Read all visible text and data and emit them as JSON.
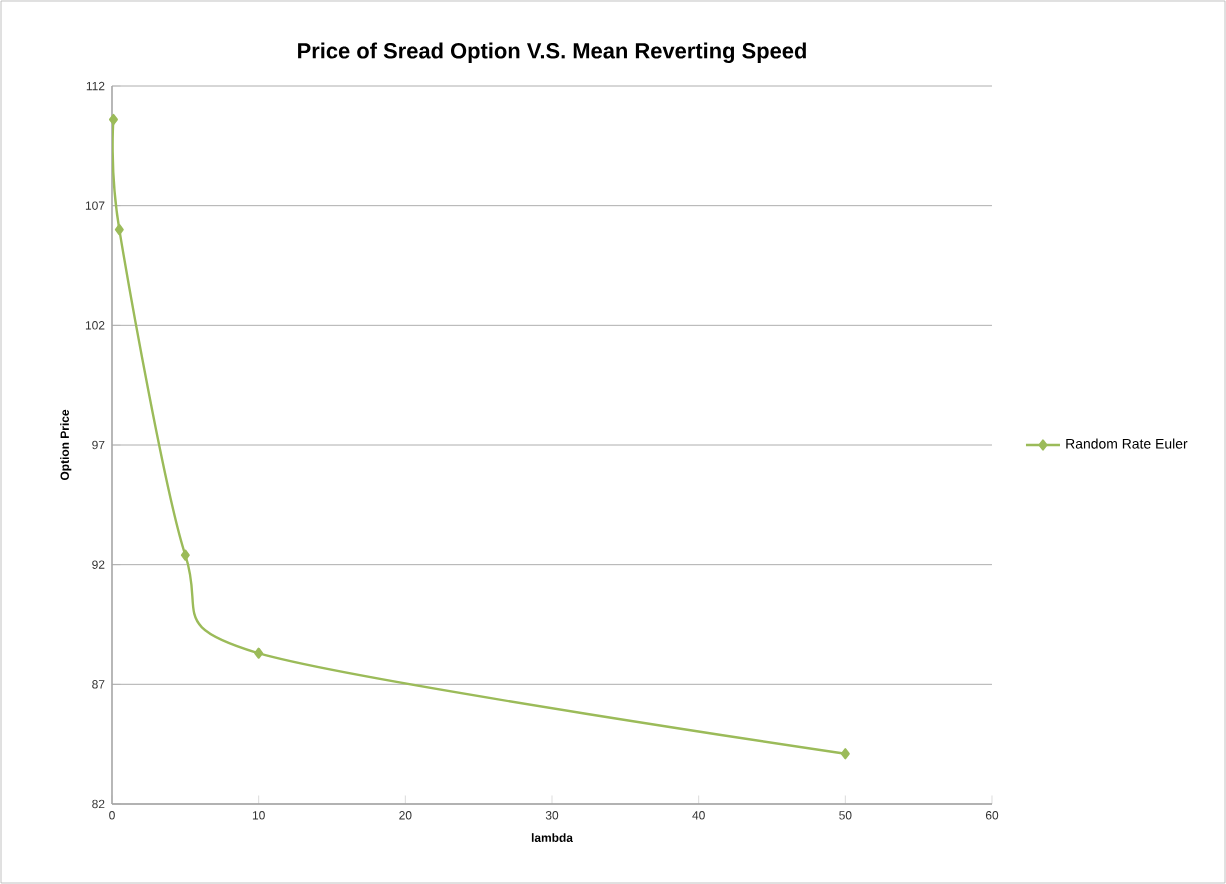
{
  "chart_data": {
    "type": "line",
    "title": "Price of Sread Option V.S. Mean Reverting Speed",
    "xlabel": "lambda",
    "ylabel": "Option Price",
    "series": [
      {
        "name": "Random Rate Euler",
        "color": "#9bbb59",
        "x": [
          0.1,
          0.5,
          5,
          10,
          50
        ],
        "values": [
          110.6,
          106.0,
          92.4,
          88.3,
          84.1
        ]
      }
    ],
    "xlim": [
      0,
      60
    ],
    "xticks": [
      0,
      10,
      20,
      30,
      40,
      50,
      60
    ],
    "ylim": [
      82,
      112
    ],
    "yticks": [
      82,
      87,
      92,
      97,
      102,
      107,
      112
    ],
    "grid": "y",
    "legend": "right",
    "marker": "diamond",
    "line_style": "solid"
  }
}
